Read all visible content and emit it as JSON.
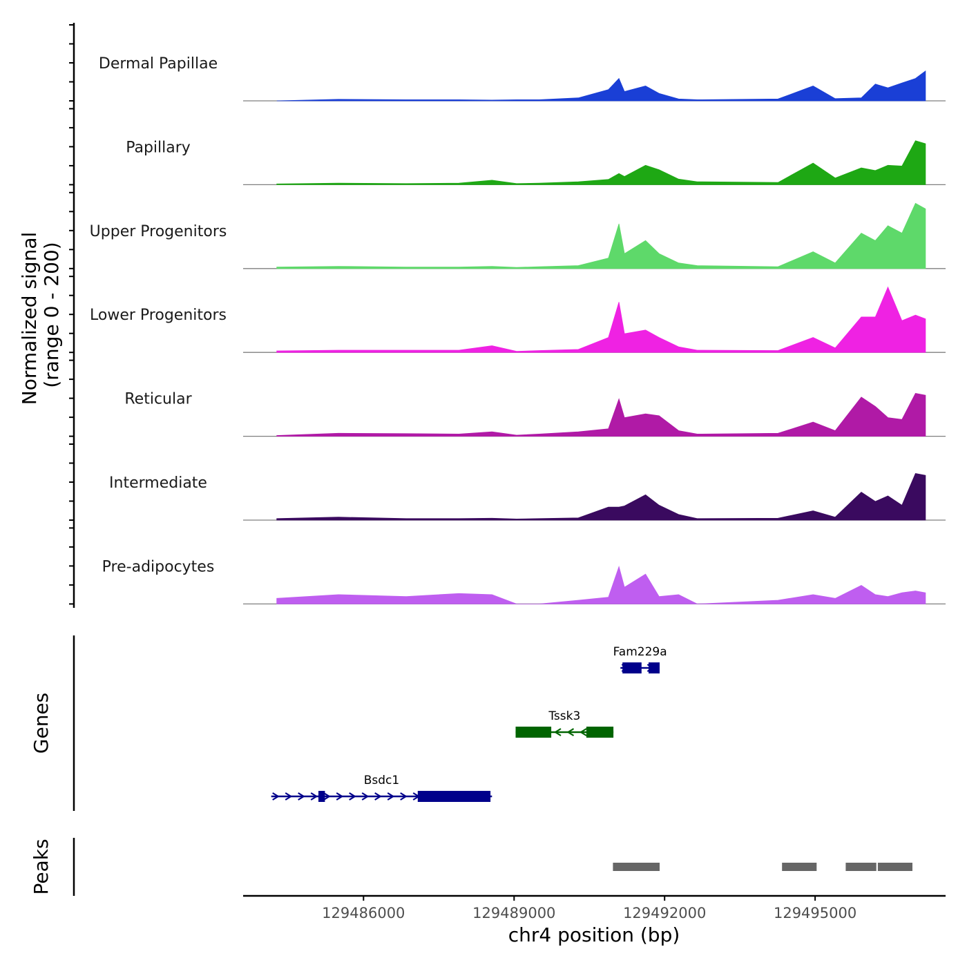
{
  "chart_data": {
    "type": "area",
    "title": "",
    "xlabel": "chr4 position (bp)",
    "xlim": [
      129483600,
      129497600
    ],
    "x_ticks": [
      129486000,
      129489000,
      129492000,
      129495000
    ],
    "x_tick_labels": [
      "129486000",
      "129489000",
      "129492000",
      "129495000"
    ],
    "signal_panel": {
      "ylabel_line1": "Normalized signal",
      "ylabel_line2": "(range 0 - 200)",
      "ylim": [
        0,
        200
      ],
      "x": [
        129484270,
        129485500,
        129486850,
        129487900,
        129488560,
        129489050,
        129489500,
        129490280,
        129490880,
        129491090,
        129491200,
        129491620,
        129491890,
        129492280,
        129492650,
        129494260,
        129494960,
        129495400,
        129495920,
        129496200,
        129496450,
        129496730,
        129497000,
        129497200
      ],
      "series": [
        {
          "name": "Dermal Papillae",
          "color": "#1a3fd6",
          "values": [
            0,
            4,
            3,
            3,
            2,
            3,
            3,
            8,
            30,
            60,
            25,
            40,
            20,
            5,
            3,
            5,
            40,
            6,
            8,
            45,
            35,
            48,
            60,
            80
          ]
        },
        {
          "name": "Papillary",
          "color": "#1ea814",
          "values": [
            2,
            4,
            3,
            4,
            12,
            3,
            4,
            8,
            14,
            30,
            22,
            52,
            40,
            15,
            8,
            6,
            58,
            18,
            45,
            38,
            52,
            50,
            118,
            110
          ]
        },
        {
          "name": "Upper Progenitors",
          "color": "#5ed96a",
          "values": [
            4,
            6,
            4,
            4,
            6,
            3,
            5,
            8,
            28,
            120,
            40,
            75,
            40,
            15,
            8,
            5,
            45,
            15,
            95,
            75,
            115,
            95,
            175,
            160
          ]
        },
        {
          "name": "Lower Progenitors",
          "color": "#ef22e3",
          "values": [
            4,
            6,
            6,
            6,
            18,
            3,
            5,
            8,
            40,
            135,
            50,
            60,
            40,
            15,
            6,
            5,
            40,
            12,
            95,
            95,
            175,
            85,
            100,
            90
          ]
        },
        {
          "name": "Reticular",
          "color": "#b01aa6",
          "values": [
            2,
            8,
            7,
            6,
            12,
            3,
            6,
            12,
            20,
            100,
            50,
            60,
            55,
            15,
            6,
            8,
            38,
            15,
            105,
            80,
            50,
            45,
            115,
            110
          ]
        },
        {
          "name": "Intermediate",
          "color": "#3a0a5f",
          "values": [
            4,
            8,
            4,
            4,
            5,
            3,
            4,
            6,
            35,
            35,
            38,
            68,
            40,
            15,
            4,
            5,
            25,
            8,
            75,
            50,
            65,
            40,
            125,
            120
          ]
        },
        {
          "name": "Pre-adipocytes",
          "color": "#bf5ef0",
          "values": [
            15,
            25,
            20,
            28,
            25,
            0,
            0,
            10,
            18,
            100,
            45,
            80,
            20,
            25,
            0,
            10,
            25,
            15,
            50,
            25,
            20,
            30,
            35,
            30
          ]
        }
      ]
    },
    "genes_panel": {
      "ylabel": "Genes",
      "genes": [
        {
          "name": "Fam229a",
          "strand": "+",
          "start": 129491120,
          "end": 129491900,
          "exons": [
            [
              129491160,
              129491540
            ],
            [
              129491680,
              129491900
            ]
          ],
          "color": "#00008b"
        },
        {
          "name": "Tssk3",
          "strand": "-",
          "start": 129489030,
          "end": 129490980,
          "exons": [
            [
              129489030,
              129489740
            ],
            [
              129490440,
              129490980
            ]
          ],
          "color": "#006400"
        },
        {
          "name": "Bsdc1",
          "strand": "+",
          "start": 129484160,
          "end": 129488560,
          "exons": [
            [
              129485100,
              129485230
            ],
            [
              129487080,
              129488530
            ]
          ],
          "color": "#00008b"
        }
      ]
    },
    "peaks_panel": {
      "ylabel": "Peaks",
      "color": "#666666",
      "peaks": [
        [
          129490970,
          129491900
        ],
        [
          129494340,
          129495030
        ],
        [
          129495610,
          129496220
        ],
        [
          129496250,
          129496940
        ]
      ]
    }
  }
}
